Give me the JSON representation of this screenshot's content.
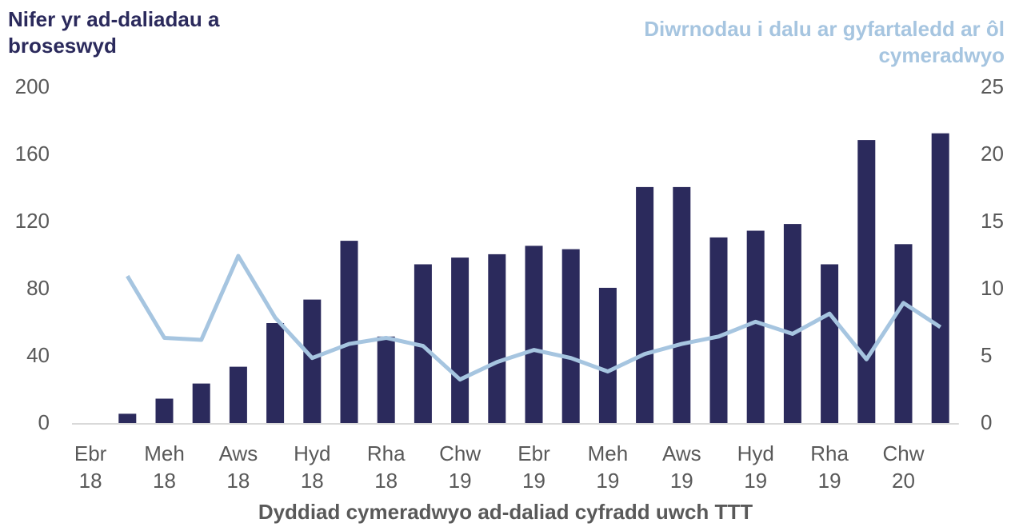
{
  "chart_data": {
    "type": "bar_line",
    "y_label": "Nifer yr ad-daliadau a broseswyd",
    "y2_label": "Diwrnodau i dalu ar gyfartaledd ar ôl cymeradwyo",
    "x_label": "Dyddiad cymeradwyo ad-daliad cyfradd uwch TTT",
    "categories": [
      "Ebr 18",
      null,
      "Meh 18",
      null,
      "Aws 18",
      null,
      "Hyd 18",
      null,
      "Rha 18",
      null,
      "Chw 19",
      null,
      "Ebr 19",
      null,
      "Meh 19",
      null,
      "Aws 19",
      null,
      "Hyd 19",
      null,
      "Rha 19",
      null,
      "Chw 20",
      null
    ],
    "series": [
      {
        "type": "bar",
        "axis": "y",
        "color": "#2b2a5c",
        "values": [
          null,
          6,
          15,
          24,
          34,
          60,
          74,
          109,
          52,
          95,
          99,
          101,
          106,
          104,
          81,
          141,
          141,
          111,
          115,
          119,
          95,
          169,
          107,
          173
        ]
      },
      {
        "type": "line",
        "axis": "y2",
        "color": "#a6c5e0",
        "values": [
          null,
          11.0,
          6.4,
          6.25,
          12.5,
          7.9,
          4.9,
          5.95,
          6.4,
          5.8,
          3.3,
          4.6,
          5.5,
          4.9,
          3.9,
          5.2,
          5.95,
          6.5,
          7.6,
          6.7,
          8.2,
          4.8,
          9.0,
          7.2
        ]
      }
    ],
    "ylim": [
      0,
      200
    ],
    "yticks": [
      0,
      40,
      80,
      120,
      160,
      200
    ],
    "y2lim": [
      0,
      25
    ],
    "y2ticks": [
      0,
      5,
      10,
      15,
      20,
      25
    ],
    "grid": false
  }
}
